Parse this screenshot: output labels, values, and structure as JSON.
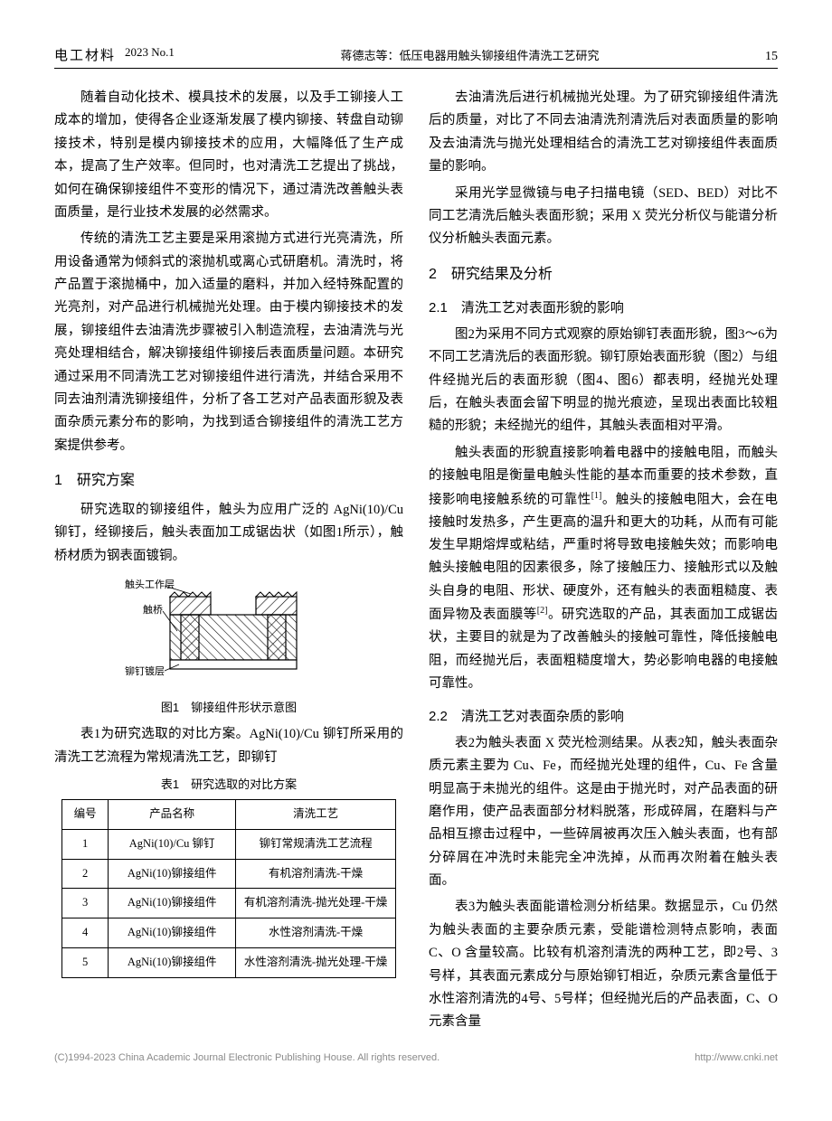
{
  "header": {
    "journal": "电工材料",
    "year_issue": "2023  No.1",
    "running_title": "蒋德志等：低压电器用触头铆接组件清洗工艺研究",
    "page_number": "15"
  },
  "left_column": {
    "p1": "随着自动化技术、模具技术的发展，以及手工铆接人工成本的增加，使得各企业逐渐发展了模内铆接、转盘自动铆接技术，特别是模内铆接技术的应用，大幅降低了生产成本，提高了生产效率。但同时，也对清洗工艺提出了挑战，如何在确保铆接组件不变形的情况下，通过清洗改善触头表面质量，是行业技术发展的必然需求。",
    "p2": "传统的清洗工艺主要是采用滚抛方式进行光亮清洗，所用设备通常为倾斜式的滚抛机或离心式研磨机。清洗时，将产品置于滚抛桶中，加入适量的磨料，并加入经特殊配置的光亮剂，对产品进行机械抛光处理。由于模内铆接技术的发展，铆接组件去油清洗步骤被引入制造流程，去油清洗与光亮处理相结合，解决铆接组件铆接后表面质量问题。本研究通过采用不同清洗工艺对铆接组件进行清洗，并结合采用不同去油剂清洗铆接组件，分析了各工艺对产品表面形貌及表面杂质元素分布的影响，为找到适合铆接组件的清洗工艺方案提供参考。",
    "sec1_title": "1　研究方案",
    "sec1_p1": "研究选取的铆接组件，触头为应用广泛的 AgNi(10)/Cu 铆钉，经铆接后，触头表面加工成锯齿状（如图1所示），触桥材质为钢表面镀铜。",
    "fig1": {
      "caption": "图1　铆接组件形状示意图",
      "label_work": "触头工作层",
      "label_bridge": "触桥",
      "label_layer": "铆钉镀层",
      "stroke": "#000000",
      "hatch": "#000000",
      "bg": "#ffffff"
    },
    "sec1_p2": "表1为研究选取的对比方案。AgNi(10)/Cu 铆钉所采用的清洗工艺流程为常规清洗工艺，即铆钉",
    "table1": {
      "caption": "表1　研究选取的对比方案",
      "columns": [
        "编号",
        "产品名称",
        "清洗工艺"
      ],
      "col_widths": [
        "14%",
        "38%",
        "48%"
      ],
      "rows": [
        [
          "1",
          "AgNi(10)/Cu 铆钉",
          "铆钉常规清洗工艺流程"
        ],
        [
          "2",
          "AgNi(10)铆接组件",
          "有机溶剂清洗-干燥"
        ],
        [
          "3",
          "AgNi(10)铆接组件",
          "有机溶剂清洗-抛光处理-干燥"
        ],
        [
          "4",
          "AgNi(10)铆接组件",
          "水性溶剂清洗-干燥"
        ],
        [
          "5",
          "AgNi(10)铆接组件",
          "水性溶剂清洗-抛光处理-干燥"
        ]
      ]
    }
  },
  "right_column": {
    "p1": "去油清洗后进行机械抛光处理。为了研究铆接组件清洗后的质量，对比了不同去油清洗剂清洗后对表面质量的影响及去油清洗与抛光处理相结合的清洗工艺对铆接组件表面质量的影响。",
    "p2": "采用光学显微镜与电子扫描电镜（SED、BED）对比不同工艺清洗后触头表面形貌；采用 X 荧光分析仪与能谱分析仪分析触头表面元素。",
    "sec2_title": "2　研究结果及分析",
    "sec21_title": "2.1　清洗工艺对表面形貌的影响",
    "sec21_p1": "图2为采用不同方式观察的原始铆钉表面形貌，图3～6为不同工艺清洗后的表面形貌。铆钉原始表面形貌（图2）与组件经抛光后的表面形貌（图4、图6）都表明，经抛光处理后，在触头表面会留下明显的抛光痕迹，呈现出表面比较粗糙的形貌；未经抛光的组件，其触头表面相对平滑。",
    "sec21_p2a": "触头表面的形貌直接影响着电器中的接触电阻，而触头的接触电阻是衡量电触头性能的基本而重要的技术参数，直接影响电接触系统的可靠性",
    "ref1": "[1]",
    "sec21_p2b": "。触头的接触电阻大，会在电接触时发热多，产生更高的温升和更大的功耗，从而有可能发生早期熔焊或粘结，严重时将导致电接触失效；而影响电触头接触电阻的因素很多，除了接触压力、接触形式以及触头自身的电阻、形状、硬度外，还有触头的表面粗糙度、表面异物及表面膜等",
    "ref2": "[2]",
    "sec21_p2c": "。研究选取的产品，其表面加工成锯齿状，主要目的就是为了改善触头的接触可靠性，降低接触电阻，而经抛光后，表面粗糙度增大，势必影响电器的电接触可靠性。",
    "sec22_title": "2.2　清洗工艺对表面杂质的影响",
    "sec22_p1": "表2为触头表面 X 荧光检测结果。从表2知，触头表面杂质元素主要为 Cu、Fe，而经抛光处理的组件，Cu、Fe 含量明显高于未抛光的组件。这是由于抛光时，对产品表面的研磨作用，使产品表面部分材料脱落，形成碎屑，在磨料与产品相互擦击过程中，一些碎屑被再次压入触头表面，也有部分碎屑在冲洗时未能完全冲洗掉，从而再次附着在触头表面。",
    "sec22_p2": "表3为触头表面能谱检测分析结果。数据显示，Cu 仍然为触头表面的主要杂质元素，受能谱检测特点影响，表面 C、O 含量较高。比较有机溶剂清洗的两种工艺，即2号、3号样，其表面元素成分与原始铆钉相近，杂质元素含量低于水性溶剂清洗的4号、5号样；但经抛光后的产品表面，C、O 元素含量"
  },
  "footer": {
    "left": "(C)1994-2023 China Academic Journal Electronic Publishing House. All rights reserved.",
    "right": "http://www.cnki.net"
  }
}
